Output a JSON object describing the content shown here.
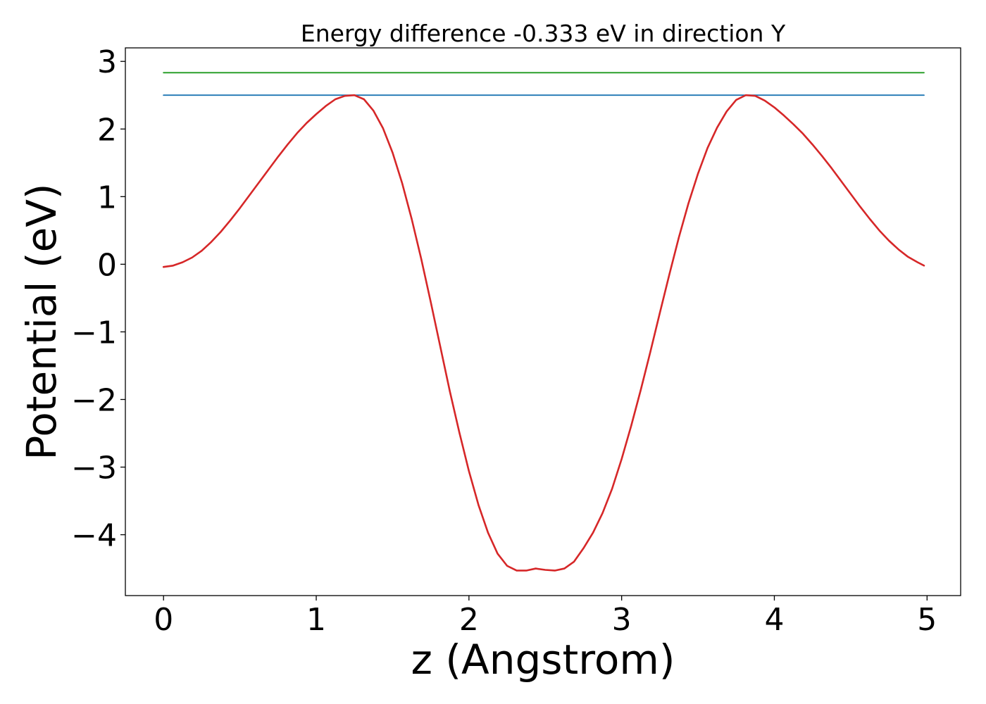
{
  "chart_data": {
    "type": "line",
    "title": "Energy difference -0.333 eV in direction Y",
    "xlabel": "z (Angstrom)",
    "ylabel": "Potential (eV)",
    "xlim": [
      -0.25,
      5.22
    ],
    "ylim": [
      -4.9,
      3.2
    ],
    "xticks": [
      0,
      1,
      2,
      3,
      4,
      5
    ],
    "xtick_labels": [
      "0",
      "1",
      "2",
      "3",
      "4",
      "5"
    ],
    "yticks": [
      -4,
      -3,
      -2,
      -1,
      0,
      1,
      2,
      3
    ],
    "ytick_labels": [
      "−4",
      "−3",
      "−2",
      "−1",
      "0",
      "1",
      "2",
      "3"
    ],
    "grid": false,
    "legend": "none",
    "series": [
      {
        "color": "#d62728",
        "x": [
          0,
          0.0625,
          0.125,
          0.1875,
          0.25,
          0.3125,
          0.375,
          0.4375,
          0.5,
          0.5625,
          0.625,
          0.6875,
          0.75,
          0.8125,
          0.875,
          0.9375,
          1.0,
          1.0625,
          1.125,
          1.1875,
          1.25,
          1.3125,
          1.375,
          1.4375,
          1.5,
          1.5625,
          1.625,
          1.6875,
          1.75,
          1.8125,
          1.875,
          1.9375,
          2.0,
          2.0625,
          2.125,
          2.1875,
          2.25,
          2.3125,
          2.375,
          2.4375,
          2.5,
          2.5625,
          2.625,
          2.6875,
          2.75,
          2.8125,
          2.875,
          2.9375,
          3.0,
          3.0625,
          3.125,
          3.1875,
          3.25,
          3.3125,
          3.375,
          3.4375,
          3.5,
          3.5625,
          3.625,
          3.6875,
          3.75,
          3.8125,
          3.875,
          3.9375,
          4.0,
          4.0625,
          4.125,
          4.1875,
          4.25,
          4.3125,
          4.375,
          4.4375,
          4.5,
          4.5625,
          4.625,
          4.6875,
          4.75,
          4.8125,
          4.875,
          4.9375,
          4.98
        ],
        "y": [
          -0.04,
          -0.02,
          0.03,
          0.1,
          0.2,
          0.33,
          0.48,
          0.65,
          0.83,
          1.02,
          1.21,
          1.4,
          1.59,
          1.77,
          1.94,
          2.09,
          2.22,
          2.34,
          2.44,
          2.49,
          2.5,
          2.44,
          2.27,
          2.01,
          1.65,
          1.2,
          0.67,
          0.08,
          -0.56,
          -1.22,
          -1.88,
          -2.49,
          -3.06,
          -3.56,
          -3.97,
          -4.28,
          -4.46,
          -4.53,
          -4.53,
          -4.5,
          -4.52,
          -4.53,
          -4.5,
          -4.4,
          -4.2,
          -3.97,
          -3.68,
          -3.32,
          -2.88,
          -2.39,
          -1.86,
          -1.3,
          -0.72,
          -0.15,
          0.4,
          0.9,
          1.34,
          1.72,
          2.02,
          2.26,
          2.43,
          2.5,
          2.49,
          2.42,
          2.32,
          2.2,
          2.07,
          1.93,
          1.77,
          1.6,
          1.42,
          1.23,
          1.04,
          0.85,
          0.67,
          0.5,
          0.35,
          0.22,
          0.11,
          0.03,
          -0.02
        ]
      },
      {
        "color": "#1f77b4",
        "x": [
          0,
          4.98
        ],
        "y": [
          2.5,
          2.5
        ]
      },
      {
        "color": "#2ca02c",
        "x": [
          0,
          4.98
        ],
        "y": [
          2.833,
          2.833
        ]
      }
    ]
  }
}
